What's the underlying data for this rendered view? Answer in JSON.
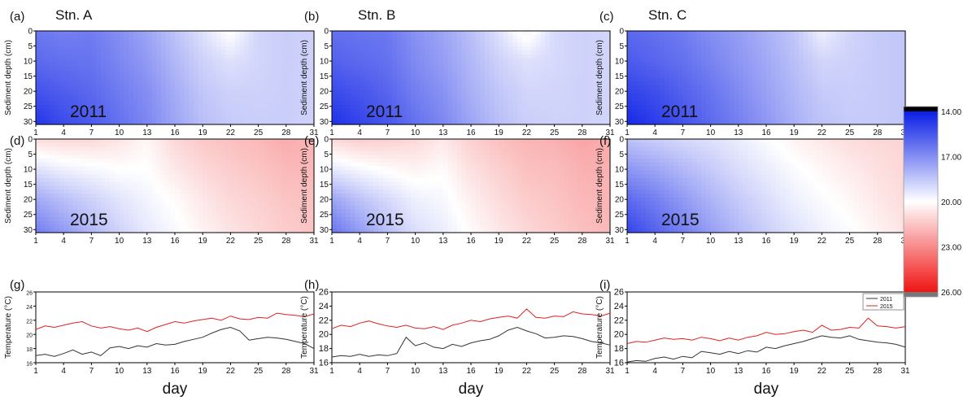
{
  "figure": {
    "panel_letters": [
      "(a)",
      "(b)",
      "(c)",
      "(d)",
      "(e)",
      "(f)",
      "(g)",
      "(h)",
      "(i)"
    ],
    "station_titles": [
      "Stn. A",
      "Stn. B",
      "Stn. C"
    ],
    "contour_ylabel": "Sediment depth  (cm)",
    "line_ylabel": "Temperature (°C)",
    "xlabel": "day",
    "year_labels": [
      "2011",
      "2015"
    ]
  },
  "colorbar": {
    "tick_labels": [
      "14.00",
      "17.00",
      "20.00",
      "23.00",
      "26.00"
    ],
    "min": 14,
    "max": 26,
    "low_color": "#0a1ee6",
    "mid_color": "#ffffff",
    "high_color": "#f01414",
    "top_color": "#000000",
    "bottom_color": "#777777"
  },
  "legend": [
    {
      "name": "2011",
      "color": "#333333"
    },
    {
      "name": "2015",
      "color": "#e02020"
    }
  ],
  "chart_data": [
    {
      "type": "heatmap",
      "panel": "(a)",
      "station": "Stn. A",
      "year": "2011",
      "xlabel": "",
      "ylabel": "Sediment depth  (cm)",
      "xlim": [
        1,
        31
      ],
      "ylim": [
        31,
        0
      ],
      "xticks": [
        1,
        4,
        7,
        10,
        13,
        16,
        19,
        22,
        25,
        28,
        31
      ],
      "yticks": [
        0,
        5,
        10,
        15,
        20,
        25,
        30
      ],
      "x": [
        1,
        4,
        7,
        10,
        13,
        16,
        19,
        22,
        25,
        28,
        31
      ],
      "depth": [
        0,
        10,
        20,
        31
      ],
      "values": [
        [
          16.4,
          16.6,
          16.5,
          17.0,
          17.6,
          18.4,
          19.2,
          20.1,
          18.9,
          18.7,
          18.8
        ],
        [
          16.0,
          16.2,
          16.3,
          16.8,
          17.3,
          18.1,
          18.8,
          19.2,
          18.9,
          18.7,
          18.8
        ],
        [
          15.4,
          15.7,
          16.0,
          16.5,
          17.0,
          17.8,
          18.5,
          18.8,
          18.8,
          18.7,
          18.8
        ],
        [
          14.6,
          15.2,
          15.6,
          16.2,
          16.8,
          17.6,
          18.3,
          18.6,
          18.7,
          18.7,
          18.8
        ]
      ]
    },
    {
      "type": "heatmap",
      "panel": "(b)",
      "station": "Stn. B",
      "year": "2011",
      "xlabel": "",
      "ylabel": "",
      "xlim": [
        1,
        31
      ],
      "ylim": [
        31,
        0
      ],
      "xticks": [
        1,
        4,
        7,
        10,
        13,
        16,
        19,
        22,
        25,
        28,
        31
      ],
      "yticks": [
        0,
        5,
        10,
        15,
        20,
        25,
        30
      ],
      "x": [
        1,
        4,
        7,
        10,
        13,
        16,
        19,
        22,
        25,
        28,
        31
      ],
      "depth": [
        0,
        10,
        20,
        31
      ],
      "values": [
        [
          16.2,
          16.3,
          16.4,
          17.1,
          17.6,
          18.3,
          19.2,
          20.4,
          19.0,
          18.8,
          18.9
        ],
        [
          15.8,
          16.0,
          16.2,
          16.9,
          17.4,
          18.1,
          18.8,
          19.2,
          19.0,
          18.8,
          18.9
        ],
        [
          15.2,
          15.5,
          15.9,
          16.6,
          17.1,
          17.9,
          18.5,
          18.9,
          18.9,
          18.8,
          18.9
        ],
        [
          14.5,
          15.0,
          15.5,
          16.2,
          16.8,
          17.6,
          18.3,
          18.7,
          18.8,
          18.8,
          18.9
        ]
      ]
    },
    {
      "type": "heatmap",
      "panel": "(c)",
      "station": "Stn. C",
      "year": "2011",
      "xlabel": "",
      "ylabel": "Sediment depth  (cm)",
      "xlim": [
        1,
        31
      ],
      "ylim": [
        31,
        0
      ],
      "xticks": [
        1,
        4,
        7,
        10,
        13,
        16,
        19,
        22,
        25,
        28,
        31
      ],
      "yticks": [
        0,
        5,
        10,
        15,
        20,
        25,
        30
      ],
      "x": [
        1,
        4,
        7,
        10,
        13,
        16,
        19,
        22,
        25,
        28,
        31
      ],
      "depth": [
        0,
        10,
        20,
        31
      ],
      "values": [
        [
          16.0,
          16.2,
          16.5,
          17.0,
          17.4,
          17.9,
          18.5,
          19.6,
          18.9,
          18.6,
          18.5
        ],
        [
          15.6,
          15.9,
          16.2,
          16.7,
          17.2,
          17.7,
          18.3,
          18.9,
          18.8,
          18.6,
          18.5
        ],
        [
          15.0,
          15.3,
          15.8,
          16.3,
          16.9,
          17.5,
          18.1,
          18.6,
          18.7,
          18.6,
          18.5
        ],
        [
          14.3,
          14.8,
          15.4,
          16.0,
          16.6,
          17.2,
          17.9,
          18.4,
          18.6,
          18.6,
          18.5
        ]
      ]
    },
    {
      "type": "heatmap",
      "panel": "(d)",
      "station": "Stn. A",
      "year": "2015",
      "xlabel": "",
      "ylabel": "Sediment depth  (cm)",
      "xlim": [
        1,
        31
      ],
      "ylim": [
        31,
        0
      ],
      "xticks": [
        1,
        4,
        7,
        10,
        13,
        16,
        19,
        22,
        25,
        28,
        31
      ],
      "yticks": [
        0,
        5,
        10,
        15,
        20,
        25,
        30
      ],
      "x": [
        1,
        4,
        7,
        10,
        13,
        16,
        19,
        22,
        25,
        28,
        31
      ],
      "depth": [
        0,
        10,
        20,
        31
      ],
      "values": [
        [
          20.9,
          21.0,
          21.0,
          20.7,
          20.2,
          21.0,
          21.4,
          21.6,
          21.8,
          22.1,
          21.9
        ],
        [
          19.2,
          19.6,
          19.8,
          20.0,
          20.0,
          20.6,
          21.0,
          21.3,
          21.5,
          21.8,
          21.8
        ],
        [
          17.7,
          18.3,
          18.8,
          19.3,
          19.7,
          20.1,
          20.6,
          21.0,
          21.2,
          21.5,
          21.6
        ],
        [
          16.5,
          17.3,
          18.1,
          18.8,
          19.4,
          19.8,
          20.3,
          20.7,
          21.0,
          21.3,
          21.5
        ]
      ]
    },
    {
      "type": "heatmap",
      "panel": "(e)",
      "station": "Stn. B",
      "year": "2015",
      "xlabel": "",
      "ylabel": "",
      "xlim": [
        1,
        31
      ],
      "ylim": [
        31,
        0
      ],
      "xticks": [
        1,
        4,
        7,
        10,
        13,
        16,
        19,
        22,
        25,
        28,
        31
      ],
      "yticks": [
        0,
        5,
        10,
        15,
        20,
        25,
        30
      ],
      "x": [
        1,
        4,
        7,
        10,
        13,
        16,
        19,
        22,
        25,
        28,
        31
      ],
      "depth": [
        0,
        10,
        20,
        31
      ],
      "values": [
        [
          21.0,
          21.3,
          21.2,
          21.0,
          20.6,
          21.2,
          21.6,
          21.9,
          22.0,
          22.3,
          22.1
        ],
        [
          19.4,
          19.8,
          20.1,
          20.3,
          20.1,
          20.8,
          21.2,
          21.6,
          21.7,
          22.0,
          22.0
        ],
        [
          17.6,
          18.4,
          19.0,
          19.6,
          19.8,
          20.4,
          20.9,
          21.3,
          21.5,
          21.8,
          21.9
        ],
        [
          16.3,
          17.3,
          18.3,
          19.1,
          19.5,
          20.1,
          20.6,
          21.0,
          21.3,
          21.6,
          21.8
        ]
      ]
    },
    {
      "type": "heatmap",
      "panel": "(f)",
      "station": "Stn. C",
      "year": "2015",
      "xlabel": "",
      "ylabel": "Sediment depth  (cm)",
      "xlim": [
        1,
        31
      ],
      "ylim": [
        31,
        0
      ],
      "xticks": [
        1,
        4,
        7,
        10,
        13,
        16,
        19,
        22,
        25,
        28,
        31
      ],
      "yticks": [
        0,
        5,
        10,
        15,
        20,
        25,
        30
      ],
      "x": [
        1,
        4,
        7,
        10,
        13,
        16,
        19,
        22,
        25,
        28,
        31
      ],
      "depth": [
        0,
        10,
        20,
        31
      ],
      "values": [
        [
          18.4,
          18.7,
          19.0,
          19.2,
          19.5,
          19.9,
          20.3,
          20.6,
          20.9,
          21.0,
          21.1
        ],
        [
          17.2,
          17.6,
          18.1,
          18.6,
          19.1,
          19.5,
          19.9,
          20.2,
          20.5,
          20.8,
          21.0
        ],
        [
          16.0,
          16.6,
          17.3,
          18.0,
          18.6,
          19.1,
          19.6,
          19.9,
          20.2,
          20.6,
          20.9
        ],
        [
          15.0,
          15.8,
          16.6,
          17.4,
          18.1,
          18.7,
          19.2,
          19.6,
          19.9,
          20.3,
          20.7
        ]
      ]
    },
    {
      "type": "line",
      "panel": "(g)",
      "station": "Stn. A",
      "xlabel": "day",
      "ylabel": "Temperature (°C)",
      "xlim": [
        1,
        31
      ],
      "ylim": [
        16,
        26
      ],
      "xticks": [
        1,
        4,
        7,
        10,
        13,
        16,
        19,
        22,
        25,
        28,
        31
      ],
      "yticks": [
        16,
        18,
        20,
        22,
        24,
        26
      ],
      "x": [
        1,
        2,
        3,
        4,
        5,
        6,
        7,
        8,
        9,
        10,
        11,
        12,
        13,
        14,
        15,
        16,
        17,
        18,
        19,
        20,
        21,
        22,
        23,
        24,
        25,
        26,
        27,
        28,
        29,
        30,
        31
      ],
      "series": [
        {
          "name": "2011",
          "values": [
            17.0,
            17.2,
            16.9,
            17.3,
            17.8,
            17.2,
            17.5,
            17.0,
            18.1,
            18.3,
            18.0,
            18.4,
            18.2,
            18.7,
            18.5,
            18.6,
            19.0,
            19.3,
            19.6,
            20.2,
            20.7,
            21.0,
            20.5,
            19.2,
            19.4,
            19.6,
            19.5,
            19.3,
            19.0,
            18.7,
            18.0
          ]
        },
        {
          "name": "2015",
          "values": [
            20.7,
            21.2,
            21.0,
            21.3,
            21.6,
            21.8,
            21.2,
            20.9,
            21.1,
            20.8,
            20.6,
            20.9,
            20.4,
            21.0,
            21.4,
            21.8,
            21.6,
            21.9,
            22.1,
            22.3,
            22.0,
            22.6,
            22.2,
            22.1,
            22.4,
            22.3,
            23.0,
            22.8,
            22.7,
            22.5,
            22.9
          ]
        }
      ]
    },
    {
      "type": "line",
      "panel": "(h)",
      "station": "Stn. B",
      "xlabel": "day",
      "ylabel": "Temperature (°C)",
      "xlim": [
        1,
        31
      ],
      "ylim": [
        16,
        26
      ],
      "xticks": [
        1,
        4,
        7,
        10,
        13,
        16,
        19,
        22,
        25,
        28,
        31
      ],
      "yticks": [
        16,
        18,
        20,
        22,
        24,
        26
      ],
      "x": [
        1,
        2,
        3,
        4,
        5,
        6,
        7,
        8,
        9,
        10,
        11,
        12,
        13,
        14,
        15,
        16,
        17,
        18,
        19,
        20,
        21,
        22,
        23,
        24,
        25,
        26,
        27,
        28,
        29,
        30,
        31
      ],
      "series": [
        {
          "name": "2011",
          "values": [
            16.8,
            17.0,
            16.9,
            17.2,
            16.9,
            17.1,
            17.0,
            17.3,
            19.6,
            18.4,
            18.8,
            18.2,
            18.0,
            18.6,
            18.3,
            18.8,
            19.1,
            19.3,
            19.8,
            20.6,
            21.0,
            20.5,
            20.1,
            19.5,
            19.6,
            19.8,
            19.7,
            19.4,
            19.0,
            18.8,
            18.5
          ]
        },
        {
          "name": "2015",
          "values": [
            20.8,
            21.3,
            21.1,
            21.6,
            21.9,
            21.5,
            21.2,
            21.0,
            21.3,
            20.9,
            20.8,
            21.1,
            20.7,
            21.3,
            21.6,
            22.0,
            21.8,
            22.2,
            22.4,
            22.6,
            22.3,
            23.6,
            22.4,
            22.3,
            22.6,
            22.5,
            23.2,
            22.9,
            22.8,
            22.6,
            23.0
          ]
        }
      ]
    },
    {
      "type": "line",
      "panel": "(i)",
      "station": "Stn. C",
      "xlabel": "day",
      "ylabel": "Temperature (°C)",
      "xlim": [
        1,
        31
      ],
      "ylim": [
        16,
        26
      ],
      "xticks": [
        1,
        4,
        7,
        10,
        13,
        16,
        19,
        22,
        25,
        28,
        31
      ],
      "yticks": [
        16,
        18,
        20,
        22,
        24,
        26
      ],
      "x": [
        1,
        2,
        3,
        4,
        5,
        6,
        7,
        8,
        9,
        10,
        11,
        12,
        13,
        14,
        15,
        16,
        17,
        18,
        19,
        20,
        21,
        22,
        23,
        24,
        25,
        26,
        27,
        28,
        29,
        30,
        31
      ],
      "series": [
        {
          "name": "2011",
          "values": [
            16.1,
            16.3,
            16.2,
            16.6,
            16.8,
            16.5,
            16.9,
            16.7,
            17.6,
            17.4,
            17.2,
            17.6,
            17.3,
            17.7,
            17.5,
            18.2,
            18.0,
            18.4,
            18.7,
            19.0,
            19.4,
            19.8,
            19.6,
            19.5,
            19.8,
            19.3,
            19.1,
            18.9,
            18.8,
            18.6,
            18.2
          ]
        },
        {
          "name": "2015",
          "values": [
            18.7,
            19.0,
            18.9,
            19.2,
            19.5,
            19.3,
            19.4,
            19.2,
            19.6,
            19.4,
            19.1,
            19.5,
            19.2,
            19.6,
            19.8,
            20.3,
            20.0,
            20.1,
            20.4,
            20.6,
            20.3,
            21.3,
            20.6,
            20.7,
            21.0,
            20.9,
            22.3,
            21.2,
            21.1,
            20.9,
            21.1
          ]
        }
      ]
    }
  ]
}
